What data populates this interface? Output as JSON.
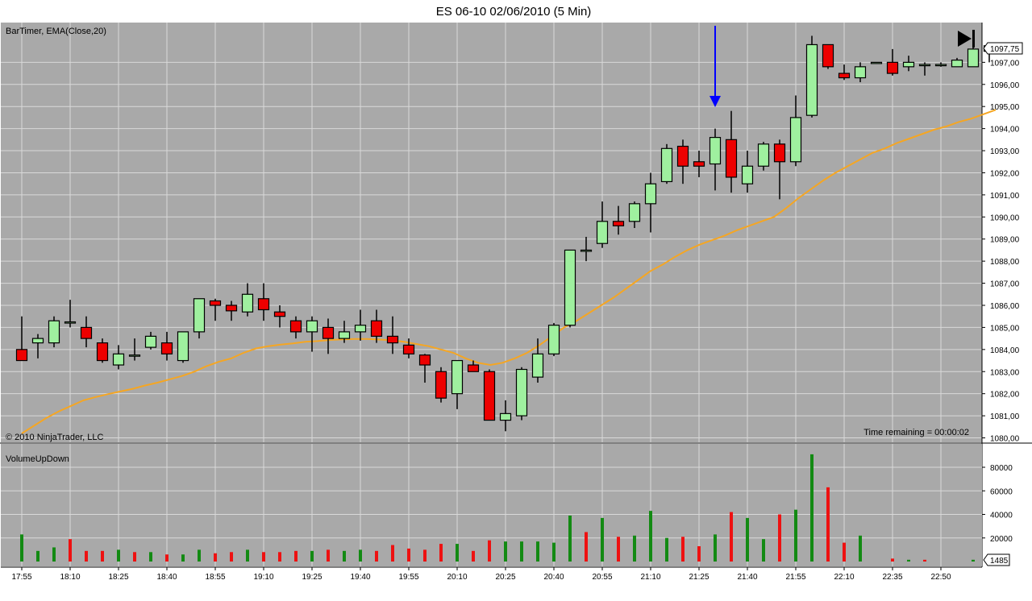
{
  "window": {
    "title": "ES 06-10  02/06/2010 (5 Min)"
  },
  "price_panel": {
    "indicator_label": "BarTimer, EMA(Close,20)",
    "copyright": "© 2010 NinjaTrader, LLC",
    "time_remaining": "Time remaining = 00:00:02",
    "last_price_label": "1097,75",
    "colors": {
      "background": "#a9a9a9",
      "grid": "#d9d9d9",
      "up": "#9ff09f",
      "down": "#ee0000",
      "ema": "#f5a623",
      "arrow": "#0000ff"
    }
  },
  "volume_panel": {
    "label": "VolumeUpDown",
    "last_volume_label": "1485",
    "colors": {
      "up": "#138a13",
      "down": "#ee1111"
    }
  },
  "chart_data": [
    {
      "type": "candlestick",
      "x_tick_labels": [
        "17:55",
        "18:10",
        "18:25",
        "18:40",
        "18:55",
        "19:10",
        "19:25",
        "19:40",
        "19:55",
        "20:10",
        "20:25",
        "20:40",
        "20:55",
        "21:10",
        "21:25",
        "21:40",
        "21:55",
        "22:10",
        "22:35",
        "22:50"
      ],
      "y_tick_labels": [
        "1080,00",
        "1081,00",
        "1082,00",
        "1083,00",
        "1084,00",
        "1085,00",
        "1086,00",
        "1087,00",
        "1088,00",
        "1089,00",
        "1090,00",
        "1091,00",
        "1092,00",
        "1093,00",
        "1094,00",
        "1095,00",
        "1096,00",
        "1097,00"
      ],
      "y_tick_values": [
        1080,
        1081,
        1082,
        1083,
        1084,
        1085,
        1086,
        1087,
        1088,
        1089,
        1090,
        1091,
        1092,
        1093,
        1094,
        1095,
        1096,
        1097
      ],
      "ylim": [
        1079.8,
        1098.8
      ],
      "grid": true,
      "candles": [
        [
          1084,
          1085.5,
          1083.6,
          1083.5
        ],
        [
          1084.3,
          1084.7,
          1083.6,
          1084.5
        ],
        [
          1084.3,
          1085.5,
          1084.1,
          1085.3
        ],
        [
          1085.25,
          1086.25,
          1085,
          1085.25
        ],
        [
          1085,
          1085.5,
          1084.1,
          1084.5
        ],
        [
          1084.3,
          1084.5,
          1083.4,
          1083.5
        ],
        [
          1083.3,
          1084.2,
          1083.1,
          1083.8
        ],
        [
          1083.75,
          1084.5,
          1083.5,
          1083.75
        ],
        [
          1084.1,
          1084.8,
          1084,
          1084.6
        ],
        [
          1084.3,
          1084.8,
          1083.5,
          1083.8
        ],
        [
          1083.5,
          1084.8,
          1083.4,
          1084.8
        ],
        [
          1084.8,
          1086.3,
          1084.5,
          1086.3
        ],
        [
          1086.2,
          1086.3,
          1085.3,
          1086
        ],
        [
          1086,
          1086.2,
          1085.3,
          1085.75
        ],
        [
          1085.7,
          1087,
          1085.5,
          1086.5
        ],
        [
          1086.3,
          1087,
          1085.3,
          1085.8
        ],
        [
          1085.7,
          1086,
          1085,
          1085.5
        ],
        [
          1085.3,
          1085.5,
          1084.5,
          1084.8
        ],
        [
          1084.8,
          1085.5,
          1083.9,
          1085.3
        ],
        [
          1085,
          1085.4,
          1083.8,
          1084.5
        ],
        [
          1084.5,
          1085.3,
          1084.3,
          1084.8
        ],
        [
          1084.8,
          1085.8,
          1084.4,
          1085.1
        ],
        [
          1085.3,
          1085.8,
          1084.3,
          1084.6
        ],
        [
          1084.6,
          1085.5,
          1083.8,
          1084.3
        ],
        [
          1084.2,
          1084.5,
          1083.6,
          1083.8
        ],
        [
          1083.75,
          1083.8,
          1082.5,
          1083.3
        ],
        [
          1083,
          1083.2,
          1081.6,
          1081.8
        ],
        [
          1082,
          1083.5,
          1081.3,
          1083.5
        ],
        [
          1083.3,
          1083.5,
          1083,
          1083
        ],
        [
          1083,
          1083.1,
          1080.8,
          1080.8
        ],
        [
          1080.8,
          1081.7,
          1080.3,
          1081.1
        ],
        [
          1081,
          1083.2,
          1080.8,
          1083.1
        ],
        [
          1082.75,
          1084.5,
          1082.5,
          1083.8
        ],
        [
          1083.8,
          1085.2,
          1083.7,
          1085.1
        ],
        [
          1085.1,
          1088.5,
          1085,
          1088.5
        ],
        [
          1088.5,
          1089.1,
          1088,
          1088.5
        ],
        [
          1088.8,
          1090.7,
          1088.6,
          1089.8
        ],
        [
          1089.8,
          1090.5,
          1089.2,
          1089.6
        ],
        [
          1089.8,
          1090.7,
          1089.5,
          1090.6
        ],
        [
          1090.6,
          1092,
          1089.3,
          1091.5
        ],
        [
          1091.6,
          1093.3,
          1091.5,
          1093.1
        ],
        [
          1093.2,
          1093.5,
          1091.5,
          1092.3
        ],
        [
          1092.5,
          1093,
          1091.8,
          1092.3
        ],
        [
          1092.4,
          1094,
          1091.2,
          1093.6
        ],
        [
          1093.5,
          1094.8,
          1091.1,
          1091.8
        ],
        [
          1091.5,
          1093,
          1091.1,
          1092.3
        ],
        [
          1092.3,
          1093.4,
          1092.1,
          1093.3
        ],
        [
          1093.3,
          1093.5,
          1090.8,
          1092.5
        ],
        [
          1092.5,
          1095.5,
          1092.3,
          1094.5
        ],
        [
          1094.6,
          1098.2,
          1094.5,
          1097.8
        ],
        [
          1097.8,
          1097.8,
          1096.7,
          1096.8
        ],
        [
          1096.5,
          1096.9,
          1096.2,
          1096.3
        ],
        [
          1096.3,
          1097,
          1096.1,
          1096.8
        ],
        [
          1097,
          1097,
          1097,
          1097
        ],
        [
          1097,
          1097.6,
          1096.4,
          1096.5
        ],
        [
          1096.8,
          1097.3,
          1096.6,
          1097
        ],
        [
          1096.9,
          1097,
          1096.4,
          1096.9
        ],
        [
          1096.9,
          1097,
          1096.8,
          1096.9
        ],
        [
          1096.8,
          1097.2,
          1096.8,
          1097.1
        ],
        [
          1096.8,
          1097.7,
          1096.8,
          1097.6
        ],
        [
          1097.5,
          1097.8,
          1097,
          1097.75
        ]
      ],
      "ema": [
        1080.2,
        1080.55,
        1080.9,
        1081.2,
        1081.45,
        1081.7,
        1081.85,
        1081.98,
        1082.1,
        1082.22,
        1082.37,
        1082.5,
        1082.65,
        1082.8,
        1083,
        1083.25,
        1083.45,
        1083.6,
        1083.85,
        1084.05,
        1084.15,
        1084.22,
        1084.28,
        1084.35,
        1084.38,
        1084.43,
        1084.46,
        1084.48,
        1084.48,
        1084.45,
        1084.42,
        1084.35,
        1084.25,
        1084.15,
        1084,
        1083.85,
        1083.6,
        1083.4,
        1083.3,
        1083.4,
        1083.6,
        1083.85,
        1084.2,
        1084.6,
        1085,
        1085.3,
        1085.65,
        1086,
        1086.35,
        1086.75,
        1087.15,
        1087.55,
        1087.85,
        1088.2,
        1088.5,
        1088.75,
        1088.95,
        1089.15,
        1089.4,
        1089.6,
        1089.8,
        1090,
        1090.4,
        1090.85,
        1091.25,
        1091.65,
        1092,
        1092.3,
        1092.6,
        1092.9,
        1093.1,
        1093.35,
        1093.55,
        1093.75,
        1093.95,
        1094.1,
        1094.3,
        1094.45,
        1094.65,
        1094.85
      ]
    },
    {
      "type": "bar",
      "y_tick_labels": [
        "20000",
        "40000",
        "60000",
        "80000"
      ],
      "y_tick_values": [
        20000,
        40000,
        60000,
        80000
      ],
      "ylim": [
        0,
        93000
      ],
      "volumes": [
        23000,
        9000,
        12000,
        19000,
        9000,
        9000,
        10000,
        8000,
        8000,
        6000,
        6000,
        10000,
        7000,
        8000,
        10000,
        8000,
        8000,
        9000,
        9000,
        10000,
        9000,
        10000,
        9000,
        14000,
        11000,
        10000,
        15000,
        15000,
        9000,
        18000,
        17000,
        17000,
        17000,
        16000,
        39000,
        25000,
        37000,
        21000,
        22000,
        43000,
        20000,
        21000,
        13000,
        23000,
        42000,
        37000,
        19000,
        40000,
        44000,
        91000,
        63000,
        16000,
        22000,
        0,
        2500,
        1500,
        1500,
        0,
        0,
        1500,
        1485
      ],
      "directions": [
        "up",
        "up",
        "up",
        "down",
        "down",
        "down",
        "up",
        "down",
        "up",
        "down",
        "up",
        "up",
        "down",
        "down",
        "up",
        "down",
        "down",
        "down",
        "up",
        "down",
        "up",
        "up",
        "down",
        "down",
        "down",
        "down",
        "down",
        "up",
        "down",
        "down",
        "up",
        "up",
        "up",
        "up",
        "up",
        "down",
        "up",
        "down",
        "up",
        "up",
        "up",
        "down",
        "down",
        "up",
        "down",
        "up",
        "up",
        "down",
        "up",
        "up",
        "down",
        "down",
        "up",
        "up",
        "down",
        "up",
        "down",
        "up",
        "up",
        "up",
        "up"
      ]
    }
  ]
}
